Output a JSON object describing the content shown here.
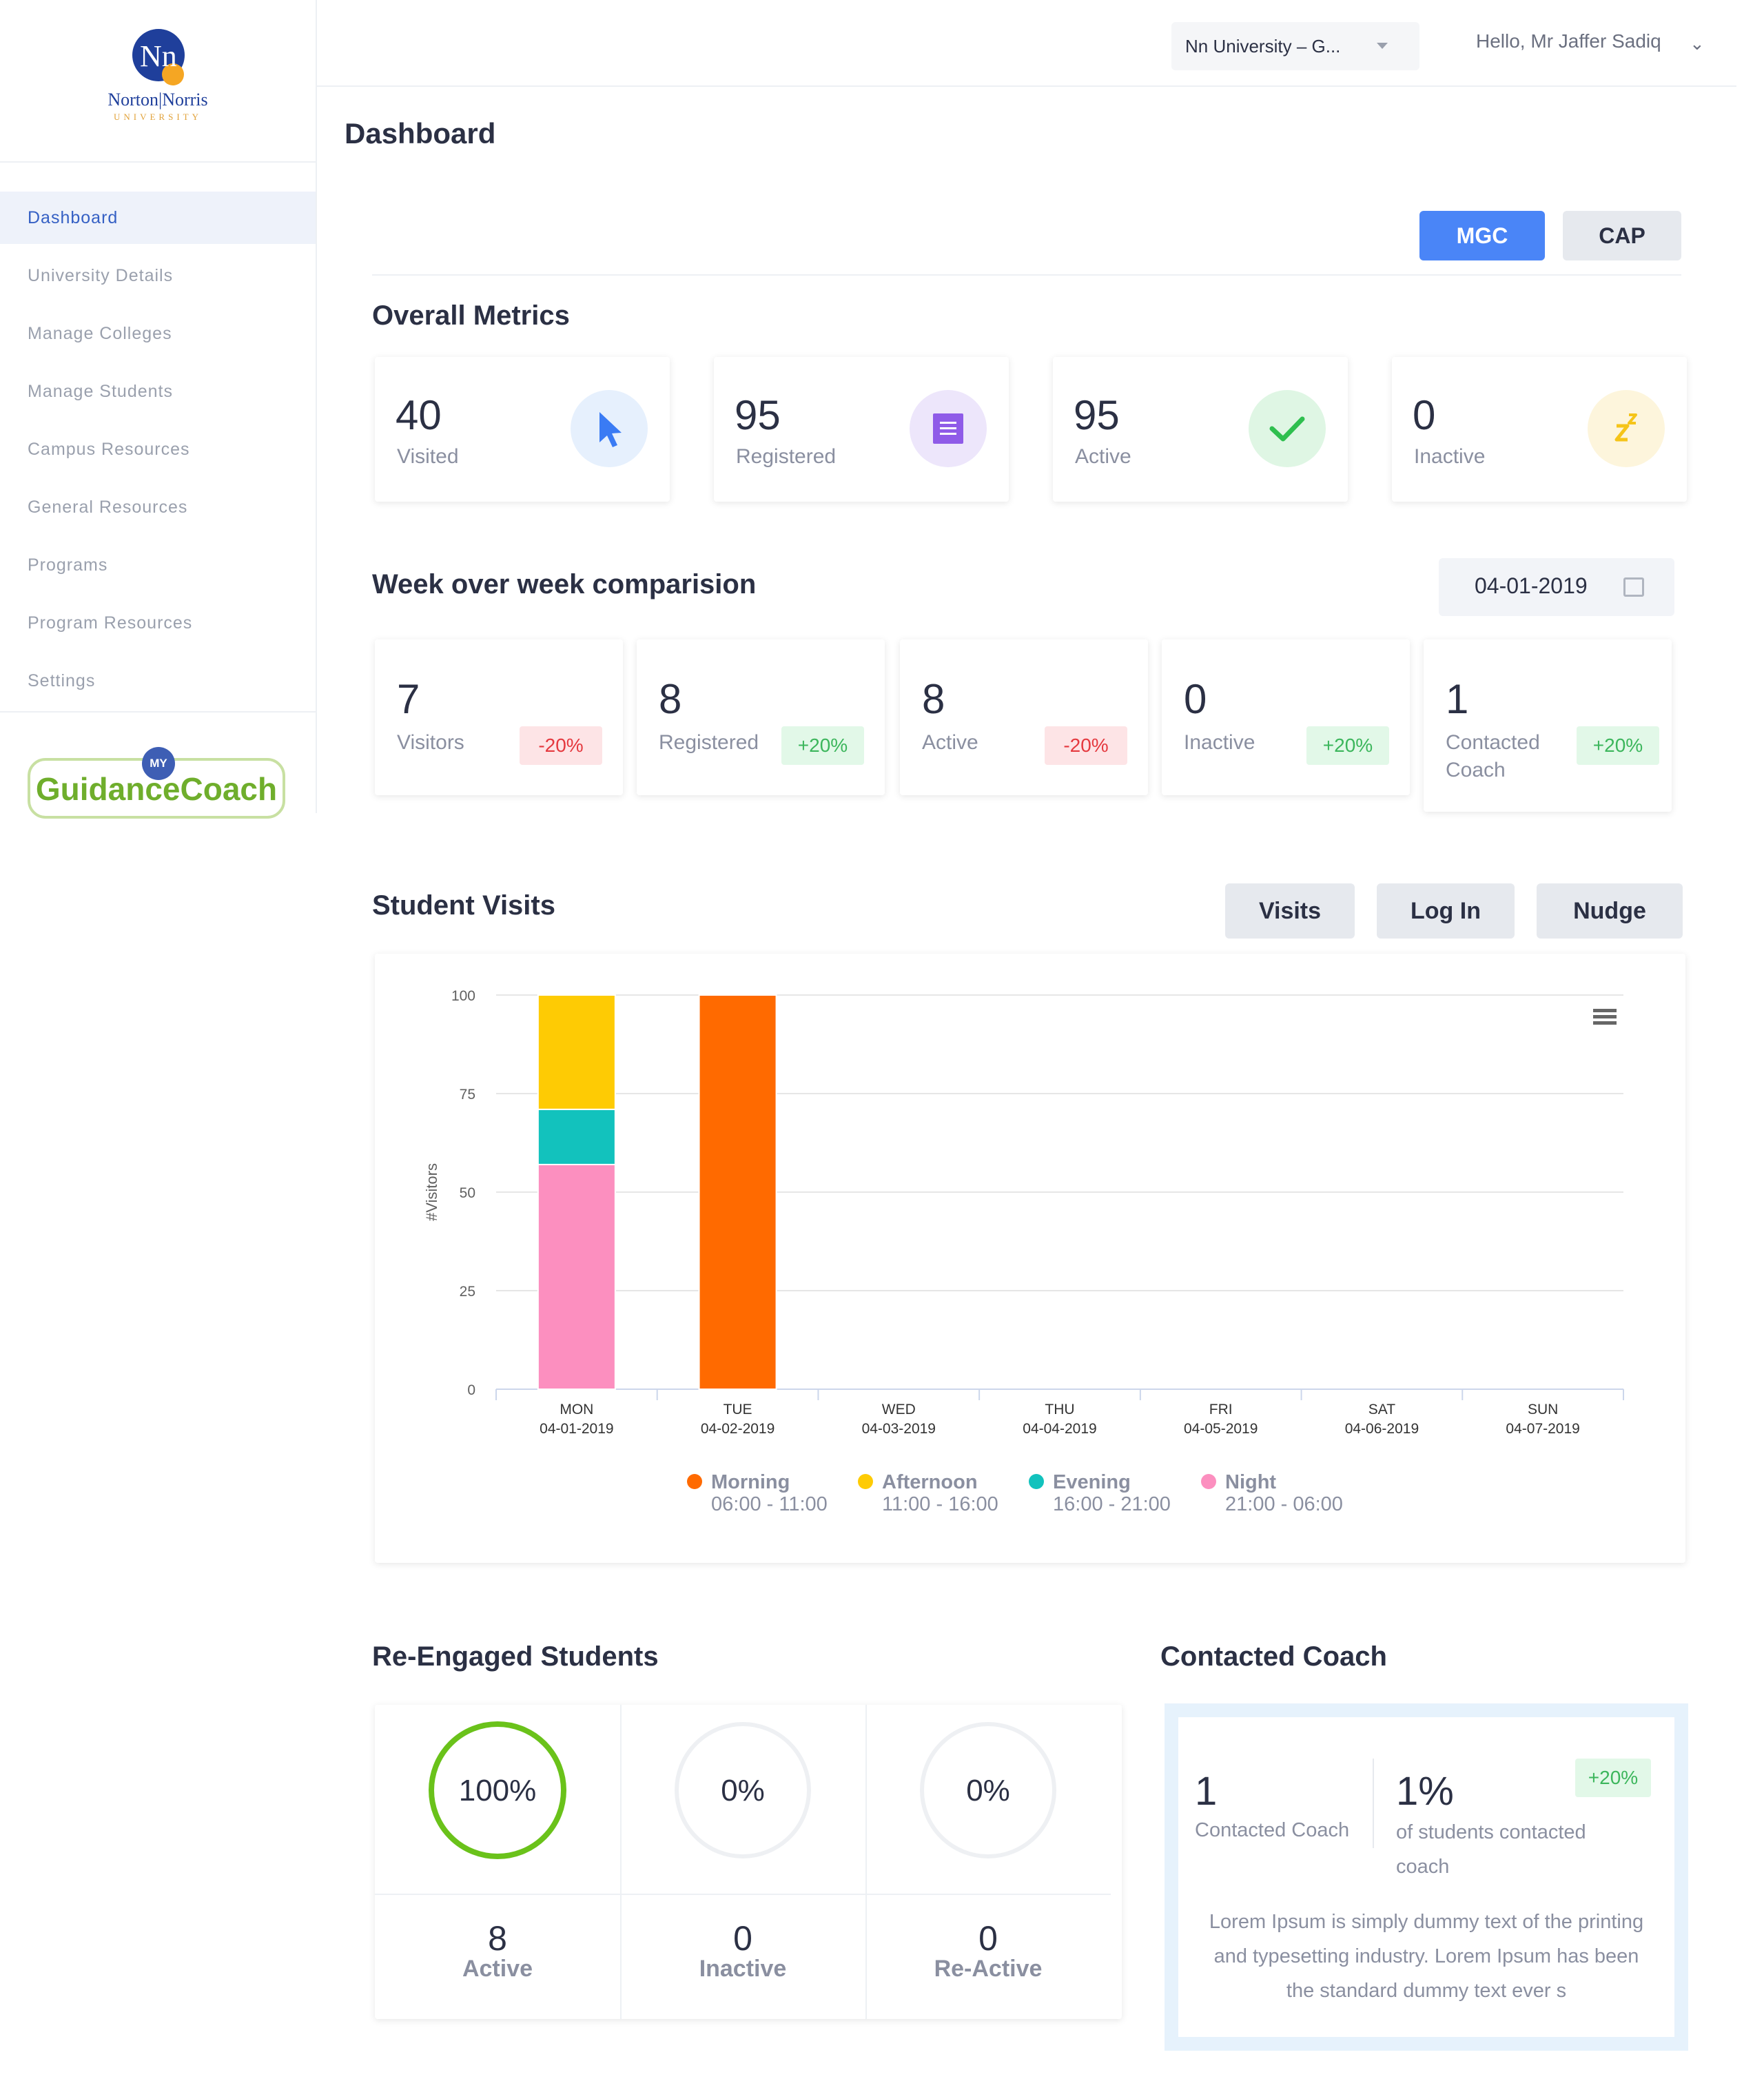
{
  "logo": {
    "monogram": "Nn",
    "line1": "Norton|Norris",
    "line2": "UNIVERSITY"
  },
  "sidebar": {
    "items": [
      {
        "label": "Dashboard",
        "active": true
      },
      {
        "label": "University Details"
      },
      {
        "label": "Manage Colleges"
      },
      {
        "label": "Manage Students"
      },
      {
        "label": "Campus Resources"
      },
      {
        "label": "General Resources"
      },
      {
        "label": "Programs"
      },
      {
        "label": "Program Resources"
      },
      {
        "label": "Settings"
      }
    ],
    "brand": {
      "prefix": "MY",
      "name": "GuidanceCoach"
    }
  },
  "header": {
    "university_select": "Nn University – G...",
    "greeting": "Hello, Mr Jaffer Sadiq"
  },
  "page": {
    "title": "Dashboard"
  },
  "toggles": [
    {
      "label": "MGC",
      "active": true
    },
    {
      "label": "CAP",
      "active": false
    }
  ],
  "overall_metrics": {
    "title": "Overall Metrics",
    "cards": [
      {
        "value": "40",
        "label": "Visited",
        "icon": "cursor-icon",
        "icon_bg": "#e6f0fd",
        "icon_color": "#3a7bf4"
      },
      {
        "value": "95",
        "label": "Registered",
        "icon": "document-icon",
        "icon_bg": "#ede6fb",
        "icon_color": "#8f5be8"
      },
      {
        "value": "95",
        "label": "Active",
        "icon": "check-icon",
        "icon_bg": "#dff6e4",
        "icon_color": "#2fbf4f"
      },
      {
        "value": "0",
        "label": "Inactive",
        "icon": "sleep-icon",
        "icon_bg": "#fdf5dc",
        "icon_color": "#f5c419"
      }
    ]
  },
  "week": {
    "title": "Week over week comparision",
    "date": "04-01-2019",
    "cards": [
      {
        "value": "7",
        "label": "Visitors",
        "change": "-20%",
        "trend": "neg"
      },
      {
        "value": "8",
        "label": "Registered",
        "change": "+20%",
        "trend": "pos"
      },
      {
        "value": "8",
        "label": "Active",
        "change": "-20%",
        "trend": "neg"
      },
      {
        "value": "0",
        "label": "Inactive",
        "change": "+20%",
        "trend": "pos"
      },
      {
        "value": "1",
        "label": "Contacted Coach",
        "change": "+20%",
        "trend": "pos"
      }
    ]
  },
  "student_visits": {
    "title": "Student Visits",
    "buttons": [
      "Visits",
      "Log In",
      "Nudge"
    ]
  },
  "chart_data": {
    "type": "bar",
    "stacked": true,
    "ylabel": "#Visitors",
    "ylim": [
      0,
      100
    ],
    "yticks": [
      0,
      25,
      50,
      75,
      100
    ],
    "categories": [
      {
        "day": "MON",
        "date": "04-01-2019"
      },
      {
        "day": "TUE",
        "date": "04-02-2019"
      },
      {
        "day": "WED",
        "date": "04-03-2019"
      },
      {
        "day": "THU",
        "date": "04-04-2019"
      },
      {
        "day": "FRI",
        "date": "04-05-2019"
      },
      {
        "day": "SAT",
        "date": "04-06-2019"
      },
      {
        "day": "SUN",
        "date": "04-07-2019"
      }
    ],
    "series": [
      {
        "name": "Night",
        "range": "21:00 - 06:00",
        "color": "#fc8fbf",
        "values": [
          57,
          0,
          0,
          0,
          0,
          0,
          0
        ]
      },
      {
        "name": "Evening",
        "range": "16:00 - 21:00",
        "color": "#12c2bd",
        "values": [
          14,
          0,
          0,
          0,
          0,
          0,
          0
        ]
      },
      {
        "name": "Afternoon",
        "range": "11:00 - 16:00",
        "color": "#fecb04",
        "values": [
          29,
          0,
          0,
          0,
          0,
          0,
          0
        ]
      },
      {
        "name": "Morning",
        "range": "06:00 - 11:00",
        "color": "#ff6a00",
        "values": [
          0,
          100,
          0,
          0,
          0,
          0,
          0
        ]
      }
    ],
    "legend_order": [
      "Morning",
      "Afternoon",
      "Evening",
      "Night"
    ],
    "legend_position": "bottom",
    "grid": true
  },
  "re_engaged": {
    "title": "Re-Engaged Students",
    "cols": [
      {
        "pct": "100%",
        "pct_value": 1.0,
        "count": "8",
        "label": "Active"
      },
      {
        "pct": "0%",
        "pct_value": 0.0,
        "count": "0",
        "label": "Inactive"
      },
      {
        "pct": "0%",
        "pct_value": 0.0,
        "count": "0",
        "label": "Re-Active"
      }
    ],
    "ring_color": "#6ac21a"
  },
  "contacted_coach": {
    "title": "Contacted Coach",
    "count": "1",
    "count_label": "Contacted Coach",
    "pct": "1%",
    "pct_label": "of students contacted coach",
    "change": "+20%",
    "body": "Lorem Ipsum is simply dummy text of the printing and typesetting industry. Lorem Ipsum has been the standard dummy text ever s"
  }
}
